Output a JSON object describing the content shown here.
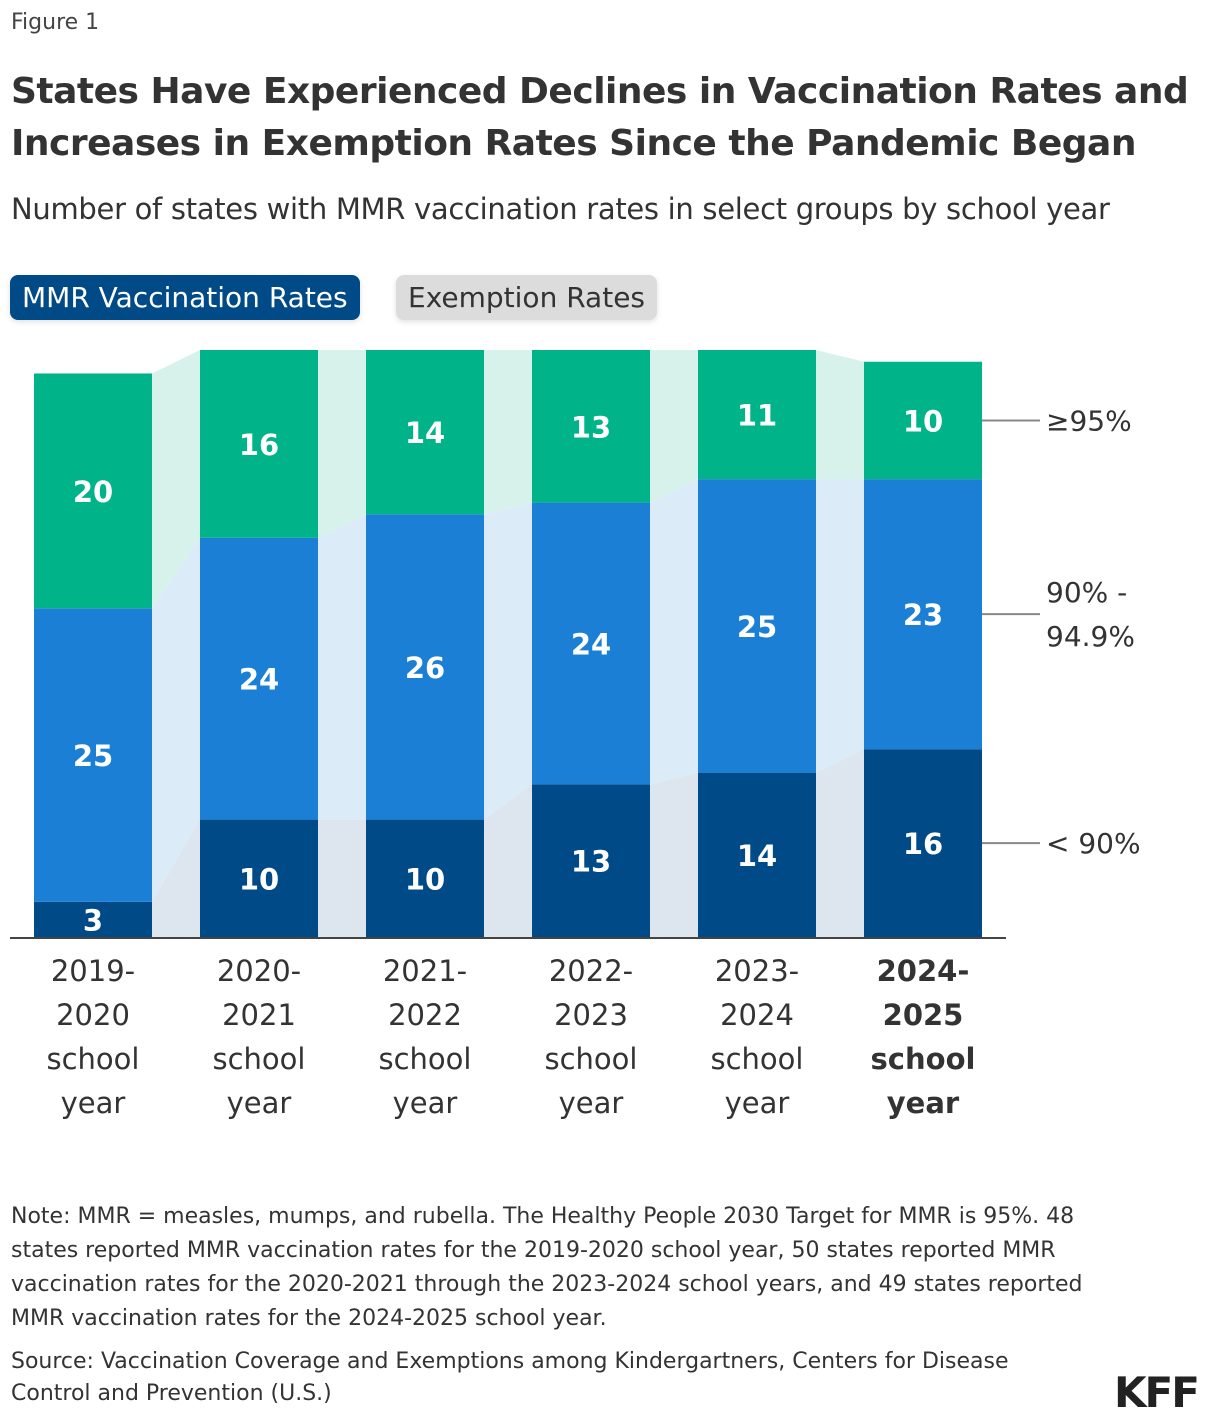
{
  "figure_label": "Figure 1",
  "title": "States Have Experienced Declines in Vaccination Rates and Increases in Exemption Rates Since the Pandemic Began",
  "subtitle": "Number of states with MMR vaccination rates in select groups by school year",
  "tabs": [
    {
      "label": "MMR Vaccination Rates",
      "active": true
    },
    {
      "label": "Exemption Rates",
      "active": false
    }
  ],
  "chart_data": {
    "type": "bar",
    "stacked": true,
    "categories": [
      [
        "2019-",
        "2020",
        "school",
        "year"
      ],
      [
        "2020-",
        "2021",
        "school",
        "year"
      ],
      [
        "2021-",
        "2022",
        "school",
        "year"
      ],
      [
        "2022-",
        "2023",
        "school",
        "year"
      ],
      [
        "2023-",
        "2024",
        "school",
        "year"
      ],
      [
        "2024-",
        "2025",
        "school",
        "year"
      ]
    ],
    "highlighted_category": 5,
    "series": [
      {
        "name": "< 90%",
        "name_lines": [
          "< 90%"
        ],
        "color": "#004a87",
        "connector_color": "#dde5ee",
        "values": [
          3,
          10,
          10,
          13,
          14,
          16
        ]
      },
      {
        "name": "90% - 94.9%",
        "name_lines": [
          "90% -",
          "94.9%"
        ],
        "color": "#1b80d5",
        "connector_color": "#dcebf8",
        "values": [
          25,
          24,
          26,
          24,
          25,
          23
        ]
      },
      {
        "name": "≥95%",
        "name_lines": [
          "≥95%"
        ],
        "color": "#00b388",
        "connector_color": "#d7f2eb",
        "values": [
          20,
          16,
          14,
          13,
          11,
          10
        ]
      }
    ],
    "ylim": [
      0,
      50
    ],
    "grid": false,
    "legend": "right, direct labels"
  },
  "notes": {
    "note": "Note: MMR = measles, mumps, and rubella. The Healthy People 2030 Target for MMR is 95%. 48 states reported MMR vaccination rates for the 2019-2020 school year, 50 states reported MMR vaccination rates for the 2020-2021 through the 2023-2024 school years, and 49 states reported MMR vaccination rates for the 2024-2025 school year.",
    "source": "Source: Vaccination Coverage and Exemptions among Kindergartners, Centers for Disease Control and Prevention (U.S.)"
  },
  "logo": "KFF"
}
